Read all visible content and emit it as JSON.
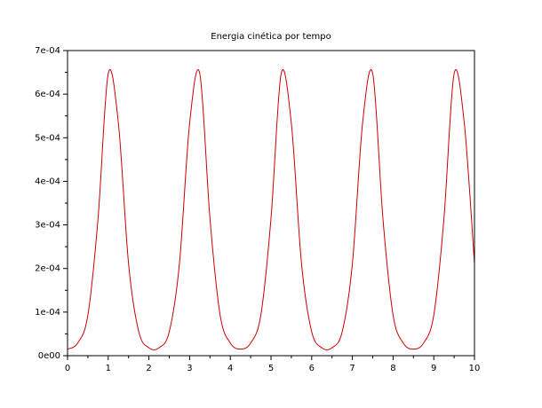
{
  "chart_data": {
    "type": "line",
    "title": "Energia cinética por tempo",
    "xlabel": "",
    "ylabel": "",
    "xlim": [
      0,
      10
    ],
    "ylim": [
      0,
      0.0007
    ],
    "grid": false,
    "legend": "none",
    "x_ticks": [
      0,
      1,
      2,
      3,
      4,
      5,
      6,
      7,
      8,
      9,
      10
    ],
    "x_tick_labels": [
      "0",
      "1",
      "2",
      "3",
      "4",
      "5",
      "6",
      "7",
      "8",
      "9",
      "10"
    ],
    "y_ticks": [
      0,
      0.0001,
      0.0002,
      0.0003,
      0.0004,
      0.0005,
      0.0006,
      0.0007
    ],
    "y_tick_labels": [
      "0e00",
      "1e-04",
      "2e-04",
      "3e-04",
      "4e-04",
      "5e-04",
      "6e-04",
      "7e-04"
    ],
    "series": [
      {
        "color": "#cc0000",
        "x": [
          0,
          0.25,
          0.5,
          0.75,
          1.0,
          1.25,
          1.5,
          1.75,
          2.0,
          2.25,
          2.5,
          2.75,
          3.0,
          3.25,
          3.5,
          3.75,
          4.0,
          4.25,
          4.5,
          4.75,
          5.0,
          5.25,
          5.5,
          5.75,
          6.0,
          6.25,
          6.5,
          6.75,
          7.0,
          7.25,
          7.5,
          7.75,
          8.0,
          8.25,
          8.5,
          8.75,
          9.0,
          9.25,
          9.5,
          9.75,
          10.0
        ],
        "y": [
          1.5e-05,
          2.9e-05,
          9.3e-05,
          0.000315,
          0.000647,
          0.000533,
          0.000211,
          5.5e-05,
          1.8e-05,
          1.8e-05,
          5.5e-05,
          0.000211,
          0.000533,
          0.000647,
          0.000315,
          9.3e-05,
          2.9e-05,
          1.5e-05,
          2.9e-05,
          9.3e-05,
          0.000315,
          0.000647,
          0.000533,
          0.000211,
          5.5e-05,
          1.8e-05,
          1.8e-05,
          5.5e-05,
          0.000211,
          0.000533,
          0.000647,
          0.000315,
          9.3e-05,
          2.9e-05,
          1.5e-05,
          2.9e-05,
          9.3e-05,
          0.000315,
          0.000647,
          0.000533,
          0.000211
        ]
      }
    ]
  }
}
